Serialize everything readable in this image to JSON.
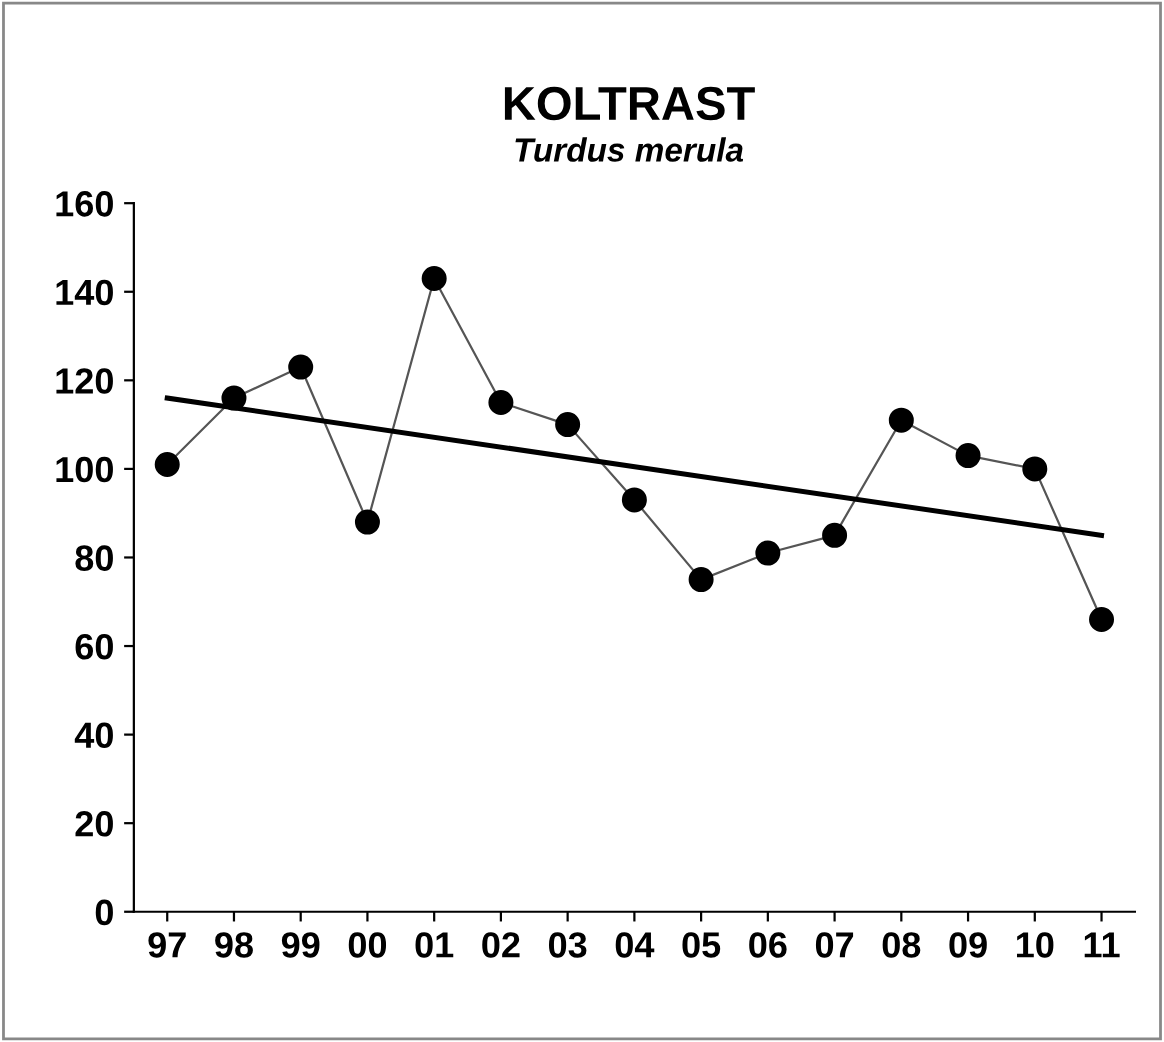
{
  "chart_data": {
    "type": "line",
    "title": "KOLTRAST",
    "subtitle": "Turdus merula",
    "categories": [
      "97",
      "98",
      "99",
      "00",
      "01",
      "02",
      "03",
      "04",
      "05",
      "06",
      "07",
      "08",
      "09",
      "10",
      "11"
    ],
    "series": [
      {
        "color": "#000000",
        "marker": "circle",
        "values": [
          101,
          116,
          123,
          88,
          143,
          115,
          110,
          93,
          75,
          81,
          85,
          111,
          103,
          100,
          66
        ]
      },
      {
        "type": "line",
        "color": "#000000",
        "marker": "none",
        "x": [
          "97",
          "11"
        ],
        "values": [
          116,
          85
        ]
      }
    ],
    "ylim": [
      0,
      160
    ],
    "yticks": [
      0,
      20,
      40,
      60,
      80,
      100,
      120,
      140,
      160
    ],
    "grid": false,
    "legend": false
  }
}
